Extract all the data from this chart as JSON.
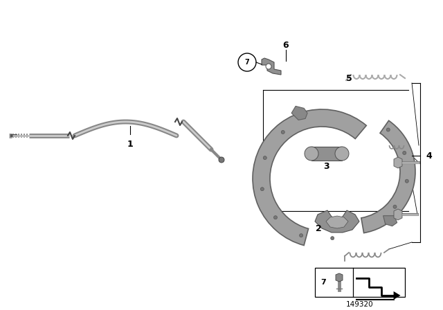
{
  "bg_color": "#ffffff",
  "fig_width": 6.4,
  "fig_height": 4.48,
  "dpi": 100,
  "part_number": "149320",
  "shoe_color": "#a0a0a0",
  "shoe_edge": "#606060",
  "part_color": "#909090",
  "part_edge": "#505050",
  "cable_color": "#888888",
  "cable_light": "#cccccc",
  "spring_color": "#aaaaaa"
}
